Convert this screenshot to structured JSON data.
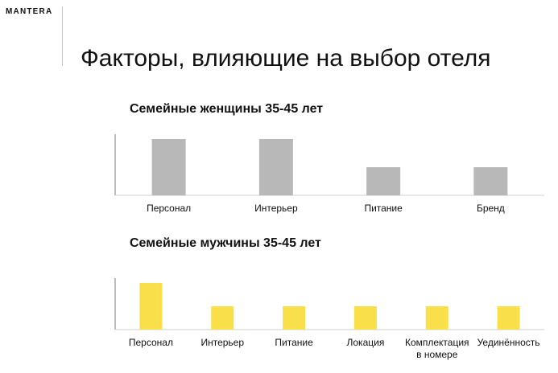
{
  "brand": {
    "name": "MANTERA"
  },
  "page": {
    "title": "Факторы, влияющие на выбор отеля"
  },
  "chart_data": [
    {
      "type": "bar",
      "title": "Семейные женщины 35-45 лет",
      "categories": [
        "Персонал",
        "Интерьер",
        "Питание",
        "Бренд"
      ],
      "values": [
        2,
        2,
        1,
        1
      ],
      "ylim": [
        0,
        2
      ],
      "grid": false,
      "color": "#b8b8b8"
    },
    {
      "type": "bar",
      "title": "Семейные мужчины 35-45 лет",
      "categories": [
        "Персонал",
        "Интерьер",
        "Питание",
        "Локация",
        "Комплектация\nв номере",
        "Уединённость"
      ],
      "values": [
        2,
        1,
        1,
        1,
        1,
        1
      ],
      "ylim": [
        0,
        2
      ],
      "grid": false,
      "color": "#f9e04b"
    }
  ]
}
